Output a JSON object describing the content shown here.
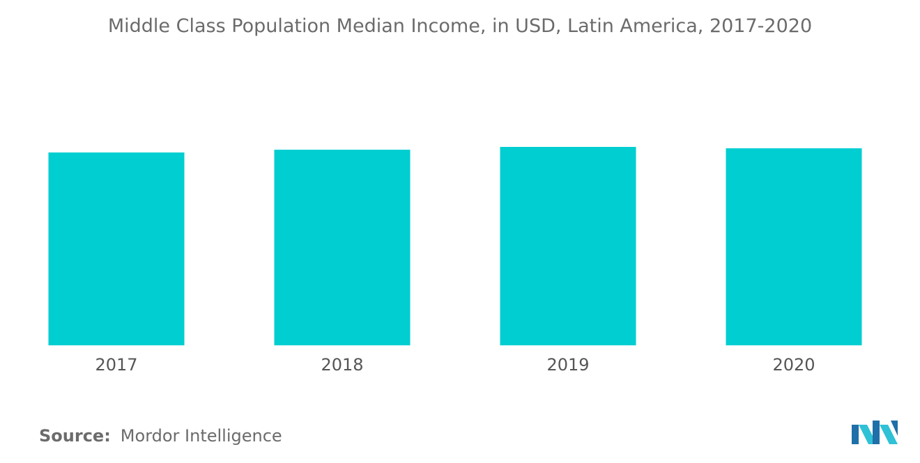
{
  "chart_data": {
    "type": "bar",
    "title": "Middle Class Population Median Income, in USD, Latin America, 2017-2020",
    "categories": [
      "2017",
      "2018",
      "2019",
      "2020"
    ],
    "values": [
      27.7,
      28.1,
      28.5,
      28.3
    ],
    "ylim": [
      0,
      28.5
    ],
    "xlabel": "",
    "ylabel": "",
    "grid": false,
    "legend": "none",
    "bar_color": "#00ced1"
  },
  "source": {
    "label": "Source:",
    "text": "Mordor Intelligence"
  },
  "logo": {
    "icon": "mordor-intelligence-logo-icon",
    "colors": [
      "#1f6fa8",
      "#2fc1d6"
    ]
  }
}
